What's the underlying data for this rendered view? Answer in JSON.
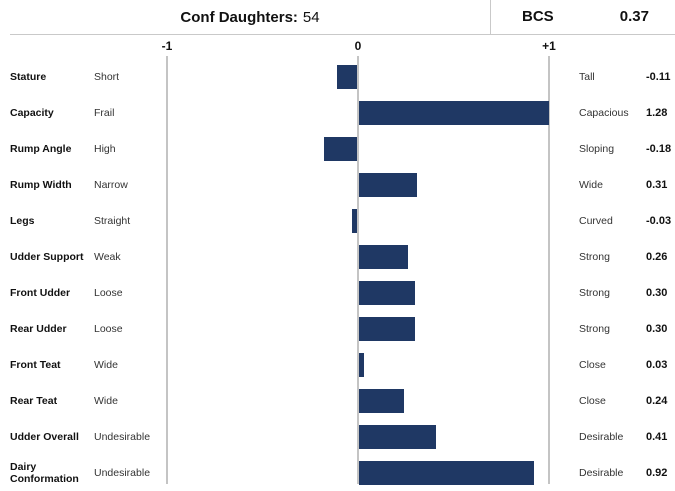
{
  "header": {
    "conf_label": "Conf Daughters:",
    "conf_value": "54",
    "bcs_label": "BCS",
    "bcs_value": "0.37"
  },
  "chart_data": {
    "type": "bar",
    "orientation": "horizontal",
    "x_ticks": [
      "-1",
      "0",
      "+1"
    ],
    "xlim": [
      -1,
      1
    ],
    "categories": [
      "Stature",
      "Capacity",
      "Rump Angle",
      "Rump Width",
      "Legs",
      "Udder Support",
      "Front Udder",
      "Rear Udder",
      "Front Teat",
      "Rear Teat",
      "Udder Overall",
      "Dairy Conformation"
    ],
    "low_labels": [
      "Short",
      "Frail",
      "High",
      "Narrow",
      "Straight",
      "Weak",
      "Loose",
      "Loose",
      "Wide",
      "Wide",
      "Undesirable",
      "Undesirable"
    ],
    "high_labels": [
      "Tall",
      "Capacious",
      "Sloping",
      "Wide",
      "Curved",
      "Strong",
      "Strong",
      "Strong",
      "Close",
      "Close",
      "Desirable",
      "Desirable"
    ],
    "values": [
      -0.11,
      1.28,
      -0.18,
      0.31,
      -0.03,
      0.26,
      0.3,
      0.3,
      0.03,
      0.24,
      0.41,
      0.92
    ],
    "value_labels": [
      "-0.11",
      "1.28",
      "-0.18",
      "0.31",
      "-0.03",
      "0.26",
      "0.30",
      "0.30",
      "0.03",
      "0.24",
      "0.41",
      "0.92"
    ],
    "colors": {
      "bar": "#1f3864",
      "axis": "#c4c4c4"
    }
  }
}
